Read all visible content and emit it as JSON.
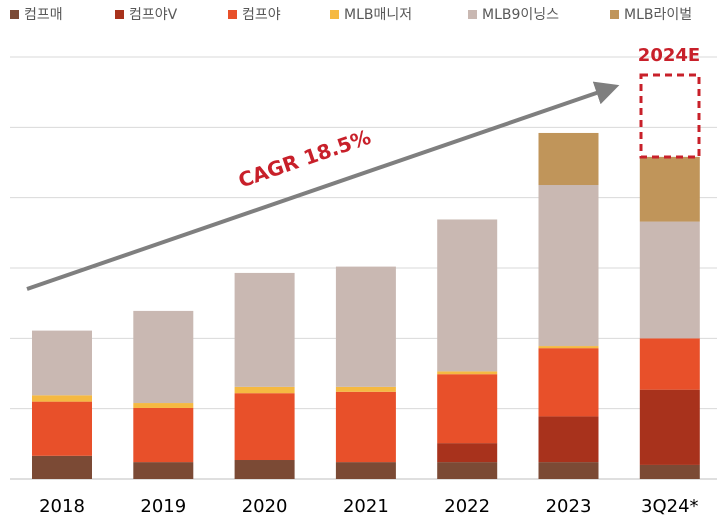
{
  "chart_data": {
    "type": "stacked_bar",
    "categories": [
      "2018",
      "2019",
      "2020",
      "2021",
      "2022",
      "2023",
      "3Q24*"
    ],
    "series": [
      {
        "name": "컴프매",
        "color": "#7b4a35",
        "values": [
          0.33,
          0.24,
          0.27,
          0.24,
          0.24,
          0.24,
          0.2
        ]
      },
      {
        "name": "컴프야V",
        "color": "#a8321c",
        "values": [
          0,
          0,
          0,
          0,
          0.27,
          0.65,
          1.07
        ]
      },
      {
        "name": "컴프야",
        "color": "#e8502a",
        "values": [
          0.77,
          0.77,
          0.95,
          1.0,
          0.98,
          0.97,
          0.73
        ]
      },
      {
        "name": "MLB매니저",
        "color": "#f5b942",
        "values": [
          0.09,
          0.07,
          0.09,
          0.07,
          0.04,
          0.03,
          0
        ]
      },
      {
        "name": "MLB9이닝스",
        "color": "#c9b8b2",
        "values": [
          0.92,
          1.31,
          1.62,
          1.71,
          2.16,
          2.29,
          1.66
        ]
      },
      {
        "name": "MLB라이벌",
        "color": "#c0955a",
        "values": [
          0,
          0,
          0,
          0,
          0,
          0.74,
          0.92
        ]
      }
    ],
    "ylim": [
      0,
      6
    ],
    "yticks": [
      0,
      1,
      2,
      3,
      4,
      5,
      6
    ],
    "grid": true,
    "annotations": [
      "CAGR 18.5%",
      "2024E"
    ]
  }
}
